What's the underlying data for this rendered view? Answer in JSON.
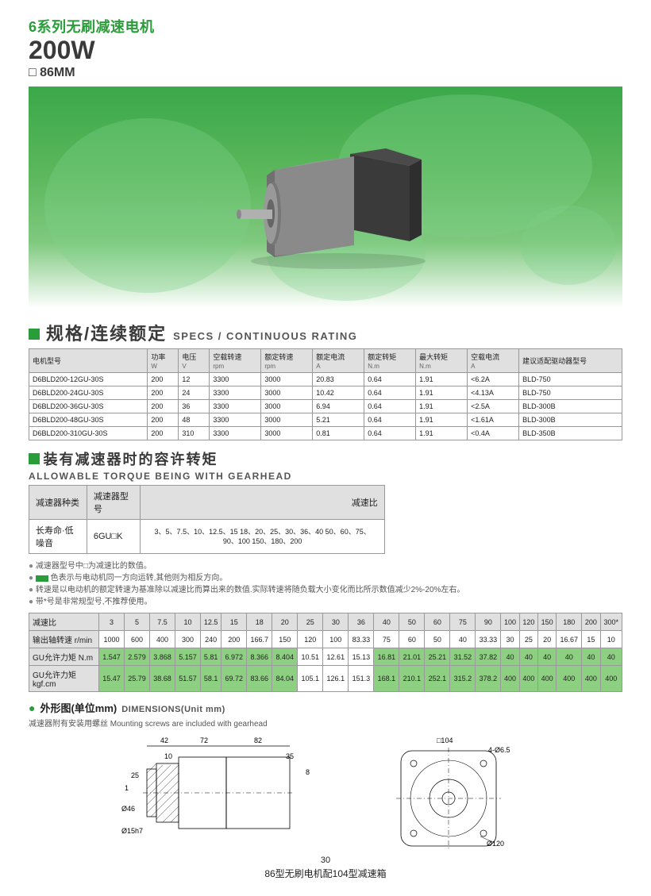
{
  "header": {
    "title_cn": "6系列无刷减速电机",
    "power": "200W",
    "size": "□ 86MM"
  },
  "section1": {
    "title_cn": "规格/连续额定",
    "title_en": "SPECS / CONTINUOUS RATING",
    "columns": [
      {
        "cn": "电机型号",
        "sub": ""
      },
      {
        "cn": "功率",
        "sub": "W"
      },
      {
        "cn": "电压",
        "sub": "V"
      },
      {
        "cn": "空载转速",
        "sub": "rpm"
      },
      {
        "cn": "额定转速",
        "sub": "rpm"
      },
      {
        "cn": "额定电流",
        "sub": "A"
      },
      {
        "cn": "额定转矩",
        "sub": "N.m"
      },
      {
        "cn": "最大转矩",
        "sub": "N.m"
      },
      {
        "cn": "空载电流",
        "sub": "A"
      },
      {
        "cn": "建议适配驱动器型号",
        "sub": ""
      }
    ],
    "rows": [
      [
        "D6BLD200-12GU-30S",
        "200",
        "12",
        "3300",
        "3000",
        "20.83",
        "0.64",
        "1.91",
        "<6.2A",
        "BLD-750"
      ],
      [
        "D6BLD200-24GU-30S",
        "200",
        "24",
        "3300",
        "3000",
        "10.42",
        "0.64",
        "1.91",
        "<4.13A",
        "BLD-750"
      ],
      [
        "D6BLD200-36GU-30S",
        "200",
        "36",
        "3300",
        "3000",
        "6.94",
        "0.64",
        "1.91",
        "<2.5A",
        "BLD-300B"
      ],
      [
        "D6BLD200-48GU-30S",
        "200",
        "48",
        "3300",
        "3000",
        "5.21",
        "0.64",
        "1.91",
        "<1.61A",
        "BLD-300B"
      ],
      [
        "D6BLD200-310GU-30S",
        "200",
        "310",
        "3300",
        "3000",
        "0.81",
        "0.64",
        "1.91",
        "<0.4A",
        "BLD-350B"
      ]
    ]
  },
  "section2": {
    "title_cn": "装有减速器时的容许转矩",
    "title_en": "ALLOWABLE TORQUE BEING WITH GEARHEAD",
    "cols": [
      "减速器种类",
      "减速器型号",
      "减速比"
    ],
    "row": [
      "长寿命·低噪音",
      "6GU□K",
      "3、5、7.5、10、12.5、15 18、20、25、30、36、40 50、60、75、90、100 150、180、200"
    ]
  },
  "notes": {
    "n1": "减速器型号中□为减速比的数值。",
    "n2": "色表示与电动机同一方向运转,其他则为相反方向。",
    "n3": "转速是以电动机的额定转速为基准除以减速比而算出来的数值.实际转速将随负载大小变化而比所示数值减少2%-20%左右。",
    "n4": "带*号是非常规型号,不推荐使用。"
  },
  "ratio": {
    "headers": [
      "减速比",
      "3",
      "5",
      "7.5",
      "10",
      "12.5",
      "15",
      "18",
      "20",
      "25",
      "30",
      "36",
      "40",
      "50",
      "60",
      "75",
      "90",
      "100",
      "120",
      "150",
      "180",
      "200",
      "300*"
    ],
    "rpm_label": "输出轴转速 r/min",
    "rpm": [
      "1000",
      "600",
      "400",
      "300",
      "240",
      "200",
      "166.7",
      "150",
      "120",
      "100",
      "83.33",
      "75",
      "60",
      "50",
      "40",
      "33.33",
      "30",
      "25",
      "20",
      "16.67",
      "15",
      "10"
    ],
    "nm_label": "GU允许力矩 N.m",
    "nm": [
      "1.547",
      "2.579",
      "3.868",
      "5.157",
      "5.81",
      "6.972",
      "8.366",
      "8.404",
      "10.51",
      "12.61",
      "15.13",
      "16.81",
      "21.01",
      "25.21",
      "31.52",
      "37.82",
      "40",
      "40",
      "40",
      "40",
      "40",
      "40"
    ],
    "kgf_label": "GU允许力矩 kgf.cm",
    "kgf": [
      "15.47",
      "25.79",
      "38.68",
      "51.57",
      "58.1",
      "69.72",
      "83.66",
      "84.04",
      "105.1",
      "126.1",
      "151.3",
      "168.1",
      "210.1",
      "252.1",
      "315.2",
      "378.2",
      "400",
      "400",
      "400",
      "400",
      "400",
      "400"
    ],
    "hl_nm": [
      0,
      1,
      2,
      3,
      4,
      5,
      6,
      7,
      11,
      12,
      13,
      14,
      15,
      16,
      17,
      18,
      19,
      20,
      21
    ],
    "hl_kgf": [
      0,
      1,
      2,
      3,
      4,
      5,
      6,
      7,
      11,
      12,
      13,
      14,
      15,
      16,
      17,
      18,
      19,
      20,
      21
    ]
  },
  "dim": {
    "title_cn": "外形图(单位mm)",
    "title_en": "DIMENSIONS(Unit mm)",
    "note": "减速器附有安装用螺丝 Mounting screws are included with gearhead"
  },
  "footer": {
    "page": "30",
    "caption": "86型无刷电机配104型减速箱"
  },
  "colors": {
    "green": "#2a9d3a",
    "hl": "#8ed081",
    "header_bg": "#e0e0e0",
    "border": "#999999"
  }
}
